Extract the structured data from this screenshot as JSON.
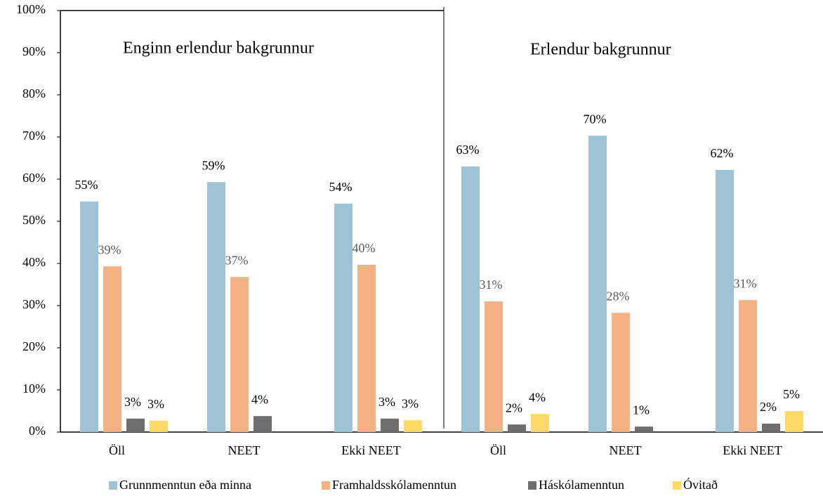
{
  "chart_data": {
    "type": "bar",
    "annotations": [
      "Enginn erlendur bakgrunnur",
      "Erlendur bakgrunnur"
    ],
    "categories": [
      "Öll",
      "NEET",
      "Ekki NEET",
      "Öll",
      "NEET",
      "Ekki NEET"
    ],
    "series": [
      {
        "name": "Grunnmenntun eða minna",
        "color": "#9dc3d4",
        "values": [
          54.7,
          59.3,
          54.2,
          63,
          70.3,
          62.2
        ],
        "value_labels": [
          "55%",
          "59%",
          "54%",
          "63%",
          "70%",
          "62%"
        ]
      },
      {
        "name": "Framhaldsskólamenntun",
        "color": "#f4b183",
        "values": [
          39.3,
          36.8,
          39.7,
          31,
          28.3,
          31.3
        ],
        "value_labels": [
          "39%",
          "37%",
          "40%",
          "31%",
          "28%",
          "31%"
        ]
      },
      {
        "name": "Háskólamenntun",
        "color": "#6e6e6e",
        "values": [
          3.2,
          3.8,
          3.2,
          1.8,
          1.3,
          2
        ],
        "value_labels": [
          "3%",
          "4%",
          "3%",
          "2%",
          "1%",
          "2%"
        ]
      },
      {
        "name": "Óvitað",
        "color": "#ffd966",
        "values": [
          2.7,
          null,
          2.8,
          4.3,
          null,
          5
        ],
        "value_labels": [
          "3%",
          null,
          "3%",
          "4%",
          null,
          "5%"
        ]
      }
    ],
    "ylim": [
      0,
      100
    ],
    "yticks": [
      {
        "value": 0,
        "label": "0%"
      },
      {
        "value": 10,
        "label": "10%"
      },
      {
        "value": 20,
        "label": "20%"
      },
      {
        "value": 30,
        "label": "30%"
      },
      {
        "value": 40,
        "label": "40%"
      },
      {
        "value": 50,
        "label": "50%"
      },
      {
        "value": 60,
        "label": "60%"
      },
      {
        "value": 70,
        "label": "70%"
      },
      {
        "value": 80,
        "label": "80%"
      },
      {
        "value": 90,
        "label": "90%"
      },
      {
        "value": 100,
        "label": "100%"
      }
    ],
    "grid": false,
    "legend": "bottom"
  }
}
